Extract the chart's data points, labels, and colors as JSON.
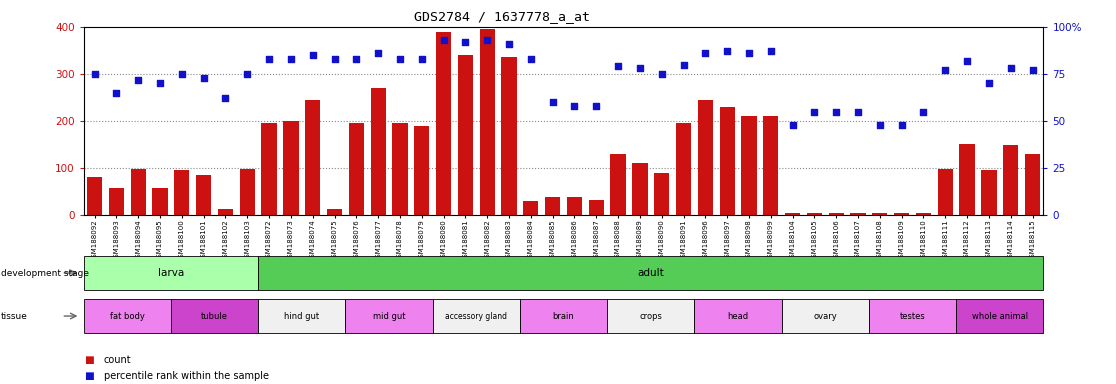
{
  "title": "GDS2784 / 1637778_a_at",
  "samples": [
    "GSM188092",
    "GSM188093",
    "GSM188094",
    "GSM188095",
    "GSM188100",
    "GSM188101",
    "GSM188102",
    "GSM188103",
    "GSM188072",
    "GSM188073",
    "GSM188074",
    "GSM188075",
    "GSM188076",
    "GSM188077",
    "GSM188078",
    "GSM188079",
    "GSM188080",
    "GSM188081",
    "GSM188082",
    "GSM188083",
    "GSM188084",
    "GSM188085",
    "GSM188086",
    "GSM188087",
    "GSM188088",
    "GSM188089",
    "GSM188090",
    "GSM188091",
    "GSM188096",
    "GSM188097",
    "GSM188098",
    "GSM188099",
    "GSM188104",
    "GSM188105",
    "GSM188106",
    "GSM188107",
    "GSM188108",
    "GSM188109",
    "GSM188110",
    "GSM188111",
    "GSM188112",
    "GSM188113",
    "GSM188114",
    "GSM188115"
  ],
  "count": [
    80,
    58,
    97,
    58,
    95,
    85,
    12,
    97,
    195,
    200,
    245,
    12,
    195,
    270,
    195,
    190,
    390,
    340,
    395,
    335,
    30,
    38,
    38,
    32,
    130,
    110,
    90,
    195,
    245,
    230,
    210,
    210,
    5,
    5,
    5,
    5,
    5,
    5,
    5,
    98,
    150,
    95,
    148,
    130
  ],
  "percentile": [
    75,
    65,
    72,
    70,
    75,
    73,
    62,
    75,
    83,
    83,
    85,
    83,
    83,
    86,
    83,
    83,
    93,
    92,
    93,
    91,
    83,
    60,
    58,
    58,
    79,
    78,
    75,
    80,
    86,
    87,
    86,
    87,
    48,
    55,
    55,
    55,
    48,
    48,
    55,
    77,
    82,
    70,
    78,
    77
  ],
  "dev_stages": [
    {
      "label": "larva",
      "start": 0,
      "end": 8,
      "color": "#aaffaa"
    },
    {
      "label": "adult",
      "start": 8,
      "end": 44,
      "color": "#55cc55"
    }
  ],
  "tissues": [
    {
      "label": "fat body",
      "start": 0,
      "end": 4,
      "color": "#ee82ee"
    },
    {
      "label": "tubule",
      "start": 4,
      "end": 8,
      "color": "#cc44cc"
    },
    {
      "label": "hind gut",
      "start": 8,
      "end": 12,
      "color": "#f0f0f0"
    },
    {
      "label": "mid gut",
      "start": 12,
      "end": 16,
      "color": "#ee82ee"
    },
    {
      "label": "accessory gland",
      "start": 16,
      "end": 20,
      "color": "#f0f0f0"
    },
    {
      "label": "brain",
      "start": 20,
      "end": 24,
      "color": "#ee82ee"
    },
    {
      "label": "crops",
      "start": 24,
      "end": 28,
      "color": "#f0f0f0"
    },
    {
      "label": "head",
      "start": 28,
      "end": 32,
      "color": "#ee82ee"
    },
    {
      "label": "ovary",
      "start": 32,
      "end": 36,
      "color": "#f0f0f0"
    },
    {
      "label": "testes",
      "start": 36,
      "end": 40,
      "color": "#ee82ee"
    },
    {
      "label": "whole animal",
      "start": 40,
      "end": 44,
      "color": "#cc44cc"
    }
  ],
  "bar_color": "#cc1111",
  "dot_color": "#1111cc",
  "ylim_left": [
    0,
    400
  ],
  "ylim_right": [
    0,
    100
  ],
  "yticks_left": [
    0,
    100,
    200,
    300,
    400
  ],
  "yticks_right": [
    0,
    25,
    50,
    75,
    100
  ],
  "ytick_labels_right": [
    "0",
    "25",
    "50",
    "75",
    "100%"
  ],
  "grid_color": "#888888",
  "plot_bg": "#ffffff"
}
